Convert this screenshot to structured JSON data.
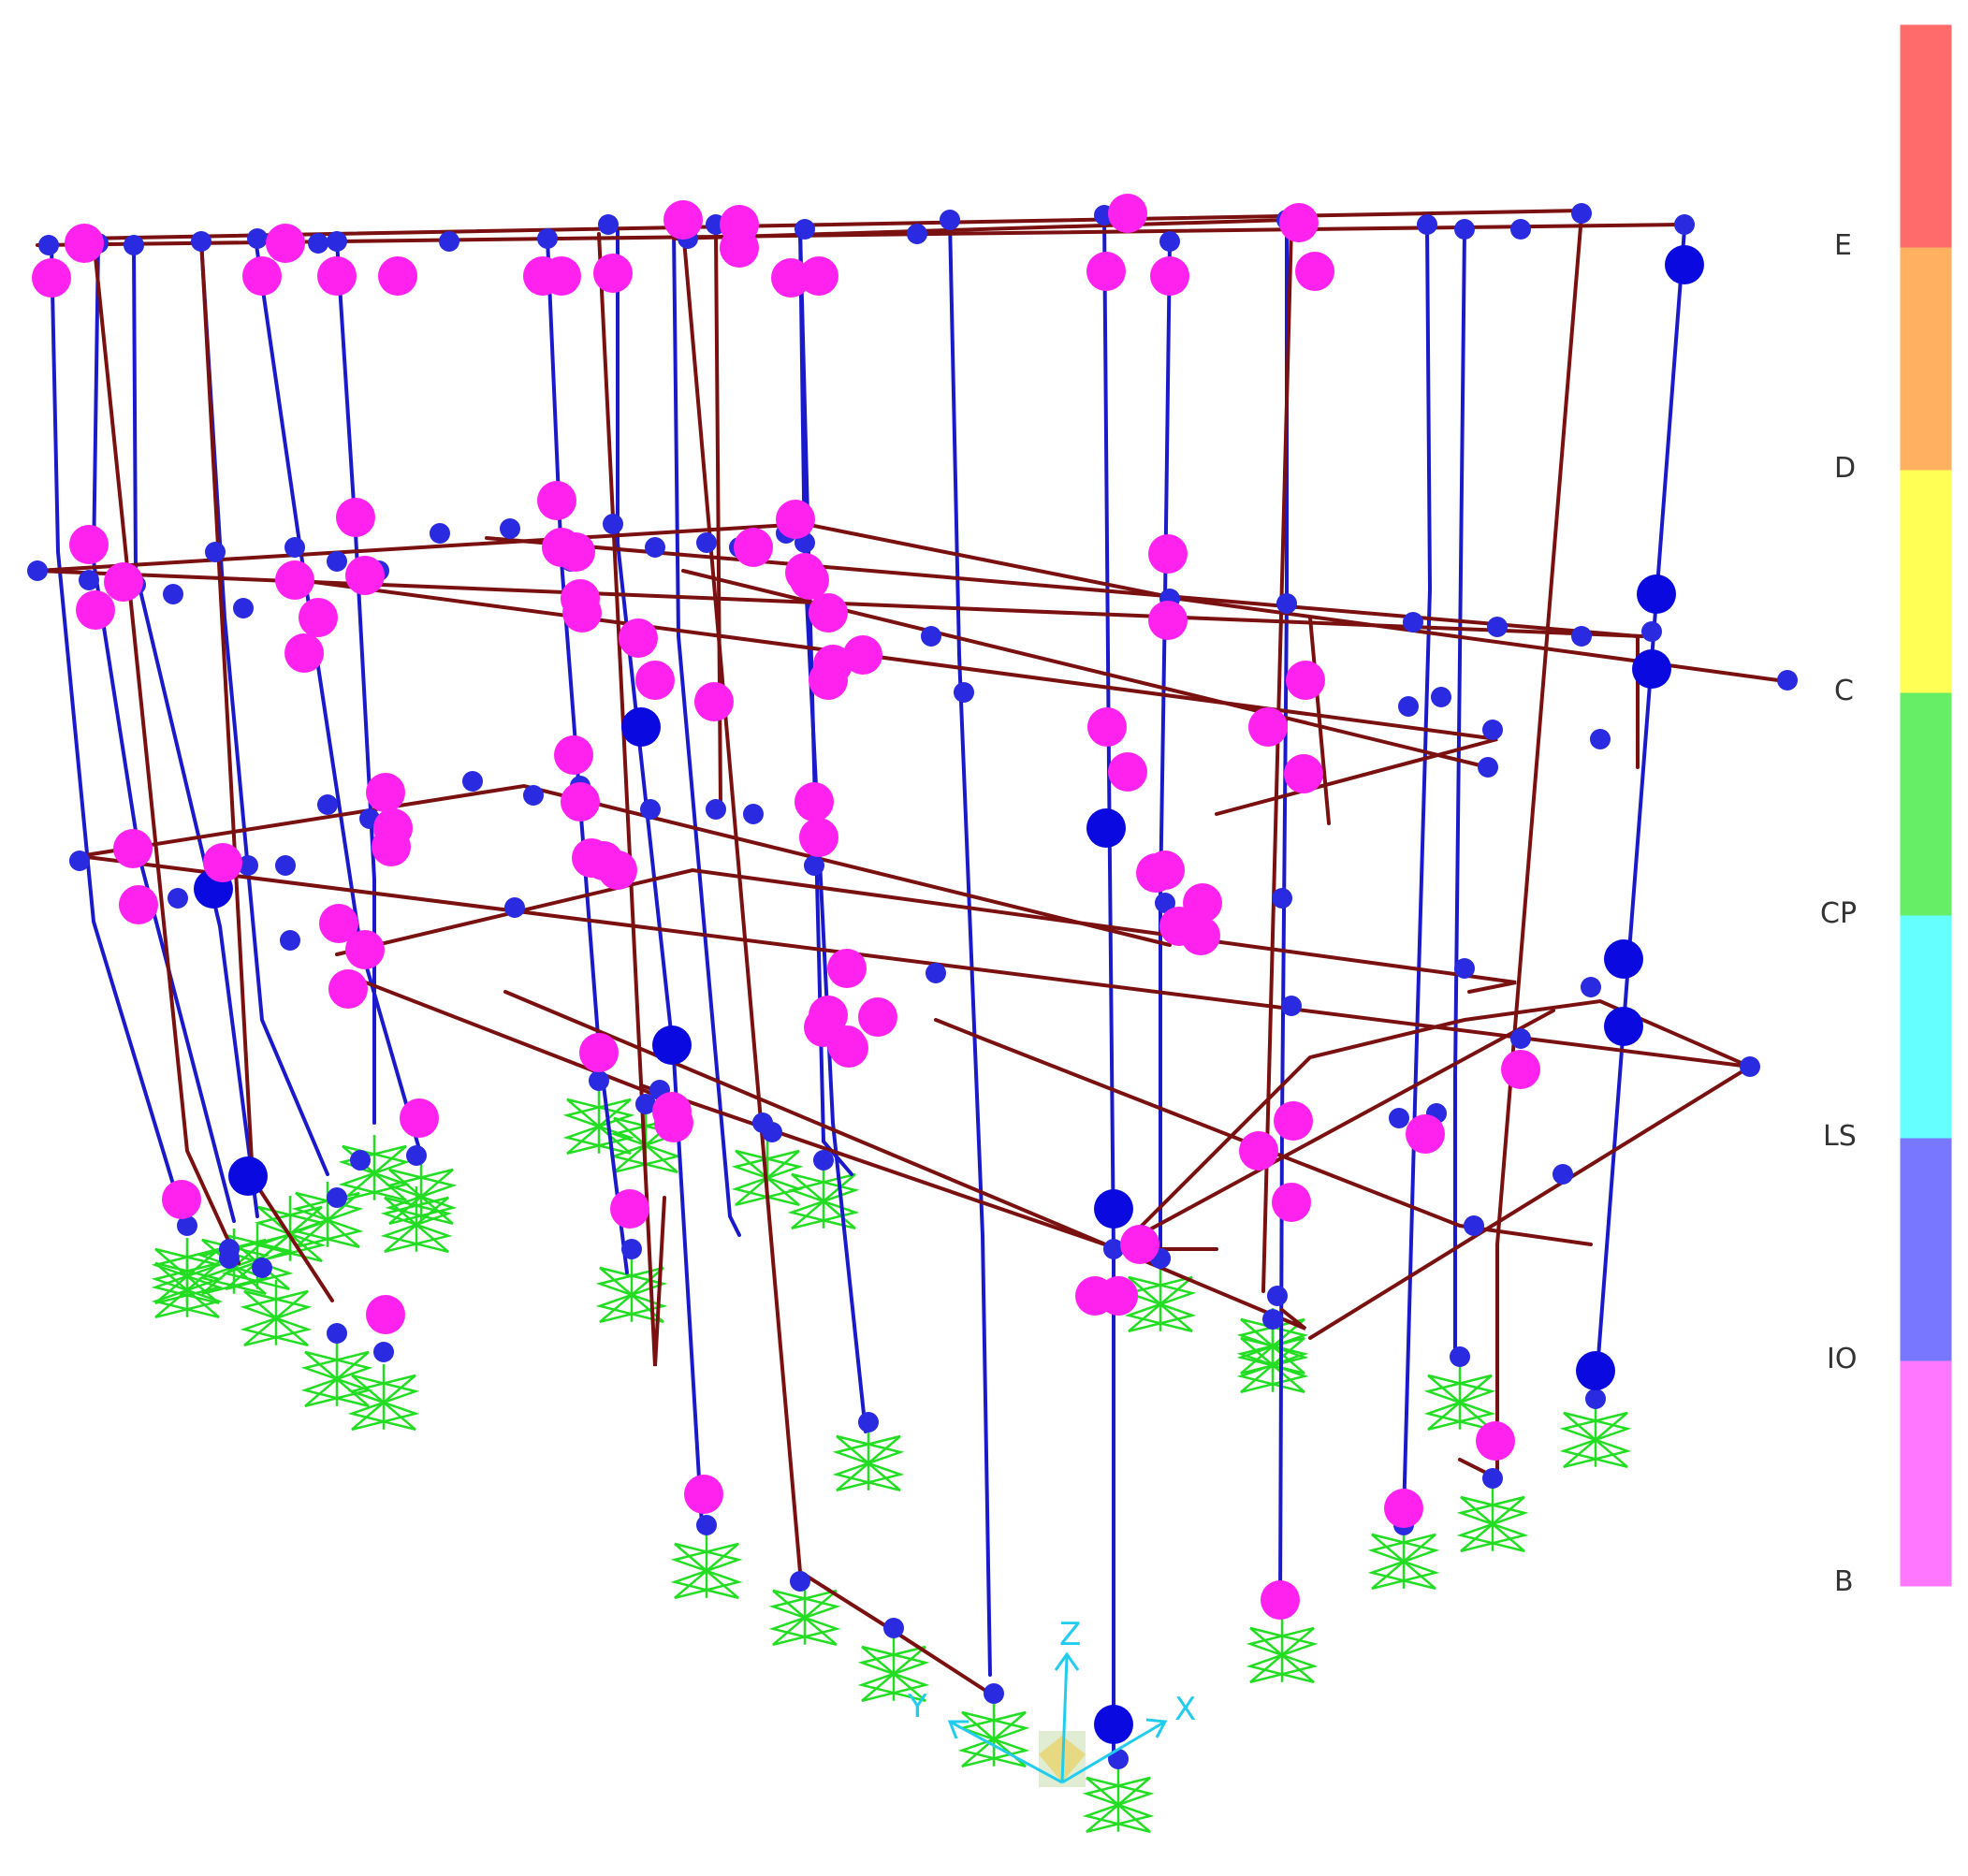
{
  "colors": {
    "background": "#ffffff",
    "column": "#1a1acc",
    "beam": "#7a1010",
    "joint": "#2020e0",
    "hinge_B": "#ff22ee",
    "hinge_IO": "#0a0ae0",
    "support": "#22dd22",
    "axis": "#22ccee"
  },
  "axes": {
    "x_label": "X",
    "y_label": "Y",
    "z_label": "Z"
  },
  "legend": {
    "levels": [
      {
        "label": "E",
        "color": "#ff6a6a"
      },
      {
        "label": "D",
        "color": "#ffb060"
      },
      {
        "label": "C",
        "color": "#ffff55"
      },
      {
        "label": "CP",
        "color": "#66ee66"
      },
      {
        "label": "LS",
        "color": "#66ffff"
      },
      {
        "label": "IO",
        "color": "#7777ff"
      },
      {
        "label": "B",
        "color": "#ff77ff"
      }
    ]
  }
}
